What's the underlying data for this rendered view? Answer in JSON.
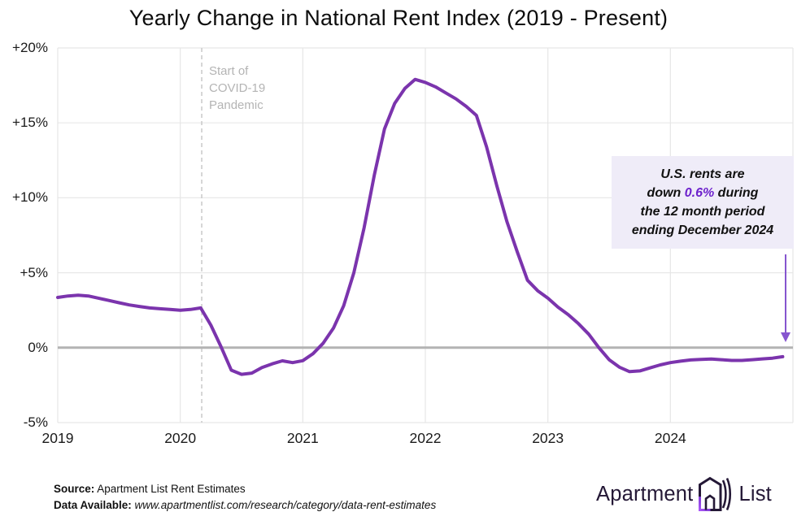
{
  "title": "Yearly Change in National Rent Index (2019 - Present)",
  "chart_data": {
    "type": "line",
    "title": "Yearly Change in National Rent Index (2019 - Present)",
    "x_ticks": [
      "2019",
      "2020",
      "2021",
      "2022",
      "2023",
      "2024"
    ],
    "y_ticks": [
      {
        "label": "+20%",
        "value": 20
      },
      {
        "label": "+15%",
        "value": 15
      },
      {
        "label": "+10%",
        "value": 10
      },
      {
        "label": "+5%",
        "value": 5
      },
      {
        "label": "0%",
        "value": 0
      },
      {
        "label": "-5%",
        "value": -5
      }
    ],
    "ylim": [
      -5,
      20
    ],
    "grid": "on",
    "legend": "none",
    "line_color": "#7b34ad",
    "zero_baseline_color": "#b3b3b3",
    "series": [
      {
        "name": "National rent index year-over-year change (%)",
        "start_month": "2019-01",
        "frequency": "monthly",
        "values": [
          3.35,
          3.45,
          3.5,
          3.45,
          3.3,
          3.15,
          3.0,
          2.85,
          2.75,
          2.65,
          2.6,
          2.55,
          2.5,
          2.55,
          2.65,
          1.5,
          0.05,
          -1.5,
          -1.78,
          -1.7,
          -1.33,
          -1.08,
          -0.88,
          -1.0,
          -0.87,
          -0.4,
          0.3,
          1.3,
          2.8,
          5.0,
          8.0,
          11.5,
          14.6,
          16.3,
          17.3,
          17.9,
          17.7,
          17.4,
          17.0,
          16.6,
          16.1,
          15.5,
          13.4,
          10.8,
          8.4,
          6.4,
          4.5,
          3.8,
          3.3,
          2.7,
          2.2,
          1.6,
          0.9,
          0.0,
          -0.8,
          -1.3,
          -1.6,
          -1.55,
          -1.35,
          -1.15,
          -1.0,
          -0.9,
          -0.82,
          -0.78,
          -0.76,
          -0.8,
          -0.85,
          -0.85,
          -0.8,
          -0.75,
          -0.7,
          -0.6
        ]
      }
    ],
    "covid_marker": {
      "month_index": 14.1,
      "label_lines": [
        "Start of",
        "COVID-19",
        "Pandemic"
      ]
    }
  },
  "annotation": {
    "l1": "U.S. rents are",
    "l2a": "down ",
    "l2b": "0.6%",
    "l2c": " during",
    "l3": "the 12 month period",
    "l4": "ending December 2024",
    "highlight_color": "#6d21cc"
  },
  "footer": {
    "source_label": "Source:",
    "source_text": " Apartment List Rent Estimates",
    "data_label": "Data Available:",
    "data_text": " www.apartmentlist.com/research/category/data-rent-estimates"
  },
  "logo": {
    "word1": "Apartment",
    "word2": "List"
  }
}
